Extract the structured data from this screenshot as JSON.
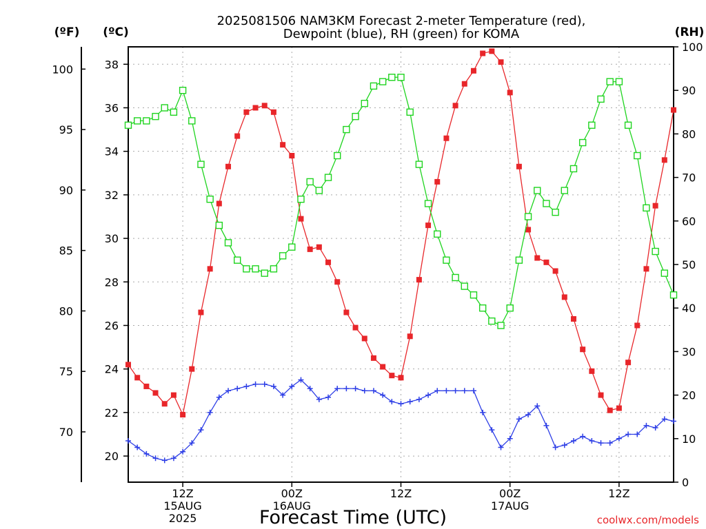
{
  "title_line1": "2025081506 NAM3KM Forecast 2-meter Temperature (red),",
  "title_line2": "Dewpoint (blue), RH (green) for KOMA",
  "left_outer_unit": "(ºF)",
  "left_inner_unit": "(ºC)",
  "right_unit": "(RH)",
  "x_title": "Forecast Time (UTC)",
  "credit": "coolwx.com/models",
  "colors": {
    "temperature": "#e8262a",
    "dewpoint": "#2d3ee6",
    "rh": "#1ed41e",
    "grid": "#a8a8a8",
    "credit": "#e8262a"
  },
  "chart_data": {
    "type": "line",
    "x_unit": "hours from 2025-08-15 06Z",
    "xlim": [
      0,
      60
    ],
    "x_ticks": [
      {
        "x": 6,
        "label": "12Z",
        "sub1": "15AUG",
        "sub2": "2025"
      },
      {
        "x": 18,
        "label": "00Z",
        "sub1": "16AUG",
        "sub2": ""
      },
      {
        "x": 30,
        "label": "12Z",
        "sub1": "",
        "sub2": ""
      },
      {
        "x": 42,
        "label": "00Z",
        "sub1": "17AUG",
        "sub2": ""
      },
      {
        "x": 54,
        "label": "12Z",
        "sub1": "",
        "sub2": ""
      }
    ],
    "y_celsius": {
      "lim": [
        18.8,
        38.8
      ],
      "ticks": [
        20,
        22,
        24,
        26,
        28,
        30,
        32,
        34,
        36,
        38
      ]
    },
    "y_fahrenheit": {
      "ticks": [
        70,
        75,
        80,
        85,
        90,
        95,
        100
      ]
    },
    "y_rh": {
      "lim": [
        0,
        100
      ],
      "ticks": [
        0,
        10,
        20,
        30,
        40,
        50,
        60,
        70,
        80,
        90,
        100
      ]
    },
    "grid": true,
    "x_step_hours": 1,
    "series": [
      {
        "name": "Temperature",
        "axis": "celsius",
        "marker": "filled-square",
        "values": [
          24.2,
          23.6,
          23.2,
          22.9,
          22.4,
          22.8,
          21.9,
          24.0,
          26.6,
          28.6,
          31.6,
          33.3,
          34.7,
          35.8,
          36.0,
          36.1,
          35.8,
          34.3,
          33.8,
          30.9,
          29.5,
          29.6,
          28.9,
          28.0,
          26.6,
          25.9,
          25.4,
          24.5,
          24.1,
          23.7,
          23.6,
          25.5,
          28.1,
          30.6,
          32.6,
          34.6,
          36.1,
          37.1,
          37.7,
          38.5,
          38.6,
          38.1,
          36.7,
          33.3,
          30.4,
          29.1,
          28.9,
          28.5,
          27.3,
          26.3,
          24.9,
          23.9,
          22.8,
          22.1,
          22.2,
          24.3,
          26.0,
          28.6,
          31.5,
          33.6,
          35.9
        ]
      },
      {
        "name": "Dewpoint",
        "axis": "celsius",
        "marker": "plus",
        "values": [
          20.7,
          20.4,
          20.1,
          19.9,
          19.8,
          19.9,
          20.2,
          20.6,
          21.2,
          22.0,
          22.7,
          23.0,
          23.1,
          23.2,
          23.3,
          23.3,
          23.2,
          22.8,
          23.2,
          23.5,
          23.1,
          22.6,
          22.7,
          23.1,
          23.1,
          23.1,
          23.0,
          23.0,
          22.8,
          22.5,
          22.4,
          22.5,
          22.6,
          22.8,
          23.0,
          23.0,
          23.0,
          23.0,
          23.0,
          22.0,
          21.2,
          20.4,
          20.8,
          21.7,
          21.9,
          22.3,
          21.4,
          20.4,
          20.5,
          20.7,
          20.9,
          20.7,
          20.6,
          20.6,
          20.8,
          21.0,
          21.0,
          21.4,
          21.3,
          21.7,
          21.6
        ]
      },
      {
        "name": "RH",
        "axis": "rh",
        "marker": "open-square",
        "values": [
          82,
          83,
          83,
          84,
          86,
          85,
          90,
          83,
          73,
          65,
          59,
          55,
          51,
          49,
          49,
          48,
          49,
          52,
          54,
          65,
          69,
          67,
          70,
          75,
          81,
          84,
          87,
          91,
          92,
          93,
          93,
          85,
          73,
          64,
          57,
          51,
          47,
          45,
          43,
          40,
          37,
          36,
          40,
          51,
          61,
          67,
          64,
          62,
          67,
          72,
          78,
          82,
          88,
          92,
          92,
          82,
          75,
          63,
          53,
          48,
          43
        ]
      }
    ]
  }
}
